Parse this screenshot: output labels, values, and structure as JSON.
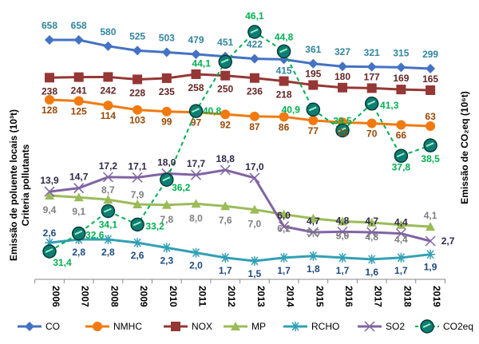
{
  "chart_data": {
    "type": "line",
    "x": [
      "2006",
      "2007",
      "2008",
      "2009",
      "2010",
      "2011",
      "2012",
      "2013",
      "2014",
      "2015",
      "2016",
      "2017",
      "2018",
      "2019"
    ],
    "ylabel_left": "Emissão de poluente locais (10³t)",
    "ylabel_left_sub": "Criteria pollutants",
    "ylabel_right": "Emissão de CO₂eq (10⁶t)",
    "legend_position": "bottom",
    "series": [
      {
        "name": "CO",
        "color": "#4472C4",
        "label_color": "#31859C",
        "marker": "diamond",
        "axis": "left",
        "values": [
          658,
          658,
          580,
          525,
          503,
          479,
          451,
          422,
          415,
          361,
          327,
          321,
          315,
          299
        ],
        "labels": [
          "658",
          "658",
          "580",
          "525",
          "503",
          "479",
          "451",
          "422",
          "415",
          "361",
          "327",
          "321",
          "315",
          "299"
        ]
      },
      {
        "name": "NMHC",
        "color": "#F07A10",
        "label_color": "#984807",
        "marker": "circle",
        "axis": "left",
        "values": [
          128,
          125,
          114,
          103,
          99,
          97,
          92,
          87,
          86,
          77,
          72,
          70,
          66,
          63
        ],
        "labels": [
          "128",
          "125",
          "114",
          "103",
          "99",
          "97",
          "92",
          "87",
          "86",
          "77",
          "72",
          "70",
          "66",
          "63"
        ]
      },
      {
        "name": "NOX",
        "color": "#953735",
        "label_color": "#632523",
        "marker": "square",
        "axis": "left",
        "values": [
          238,
          241,
          242,
          228,
          235,
          258,
          250,
          236,
          218,
          195,
          180,
          177,
          169,
          165
        ],
        "labels": [
          "238",
          "241",
          "242",
          "228",
          "235",
          "258",
          "250",
          "236",
          "218",
          "195",
          "180",
          "177",
          "169",
          "165"
        ]
      },
      {
        "name": "MP",
        "color": "#9BBB59",
        "label_color": "#7F7F7F",
        "marker": "triangle",
        "axis": "left",
        "values": [
          9.4,
          9.1,
          8.7,
          7.9,
          7.8,
          8.0,
          7.6,
          7.0,
          6.2,
          5.5,
          5.0,
          4.8,
          4.4,
          4.1
        ],
        "labels": [
          "9,4",
          "9,1",
          "8,7",
          "7,9",
          "7,8",
          "8,0",
          "7,6",
          "7,0",
          "6,2",
          "5,5",
          "5,0",
          "4,8",
          "4,4",
          "4,1"
        ]
      },
      {
        "name": "RCHO",
        "color": "#31A0B4",
        "label_color": "#1F497D",
        "marker": "asterisk",
        "axis": "left",
        "values": [
          2.6,
          2.8,
          2.8,
          2.6,
          2.3,
          2.0,
          1.7,
          1.5,
          1.7,
          1.8,
          1.7,
          1.6,
          1.7,
          1.9
        ],
        "labels": [
          "2,6",
          "2,8",
          "2,8",
          "2,6",
          "2,3",
          "2,0",
          "1,7",
          "1,5",
          "1,7",
          "1,8",
          "1,7",
          "1,6",
          "1,7",
          "1,9"
        ]
      },
      {
        "name": "SO2",
        "color": "#8064A2",
        "label_color": "#302848",
        "marker": "x",
        "axis": "left",
        "values": [
          13.9,
          14.7,
          17.2,
          17.1,
          18.0,
          17.7,
          18.8,
          17.0,
          6.0,
          4.7,
          4.8,
          4.7,
          4.4,
          2.7
        ],
        "labels": [
          "13,9",
          "14,7",
          "17,2",
          "17,1",
          "18,0",
          "17,7",
          "18,8",
          "17,0",
          "6,0",
          "4,7",
          "4,8",
          "4,7",
          "4,4",
          "2,7"
        ]
      },
      {
        "name": "CO2eq",
        "color": "#00B050",
        "label_color": "#00B050",
        "marker": "sphere",
        "axis": "right",
        "dashed": true,
        "values": [
          31.4,
          32.6,
          34.1,
          33.2,
          36.2,
          40.8,
          44.1,
          46.1,
          44.8,
          40.9,
          39.5,
          41.3,
          37.8,
          38.5
        ],
        "labels": [
          "31,4",
          "32,6",
          "34,1",
          "33,2",
          "36,2",
          "40,8",
          "44,1",
          "46,1",
          "44,8",
          "40,9",
          "39,5",
          "41,3",
          "37,8",
          "38,5"
        ]
      }
    ]
  }
}
